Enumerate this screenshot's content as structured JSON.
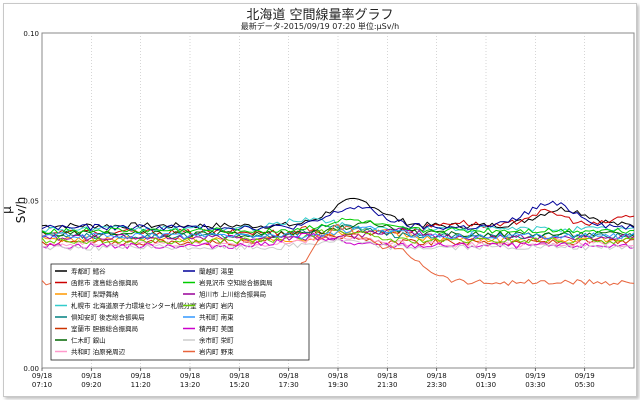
{
  "chart_data": {
    "type": "line",
    "title": "北海道 空間線量率グラフ",
    "subtitle": "最新データ-2015/09/19 07:20 単位:μSv/h",
    "ylabel": "μ Sv/h",
    "ylim": [
      0,
      0.1
    ],
    "yticks": [
      "0.00",
      "0.05",
      "0.10"
    ],
    "x_start": "09/18 07:10",
    "x_end": "09/19 07:20",
    "xticks": [
      [
        "09/18",
        "07:10"
      ],
      [
        "09/18",
        "09:20"
      ],
      [
        "09/18",
        "11:20"
      ],
      [
        "09/18",
        "13:20"
      ],
      [
        "09/18",
        "15:20"
      ],
      [
        "09/18",
        "17:30"
      ],
      [
        "09/18",
        "19:30"
      ],
      [
        "09/18",
        "21:30"
      ],
      [
        "09/18",
        "23:30"
      ],
      [
        "09/19",
        "01:30"
      ],
      [
        "09/19",
        "03:30"
      ],
      [
        "09/19",
        "05:30"
      ]
    ],
    "grid": true,
    "legend_position": "bottom-left inside",
    "series": [
      {
        "name": "寿都町 鱈谷",
        "color": "#000000",
        "level": 0.0425,
        "bumps": [
          [
            0.53,
            0.0075
          ],
          [
            0.88,
            0.005
          ]
        ]
      },
      {
        "name": "函館市 渡島総合振興局",
        "color": "#cc0000",
        "level": 0.0405,
        "bumps": [
          [
            0.7,
            0.003
          ],
          [
            0.85,
            0.006
          ],
          [
            1.0,
            0.005
          ]
        ]
      },
      {
        "name": "共和町 梨野舞納",
        "color": "#ff9900",
        "level": 0.0385,
        "bumps": [
          [
            0.55,
            0.003
          ]
        ]
      },
      {
        "name": "札幌市 北海道原子力環境センター札幌分室",
        "color": "#33cccc",
        "level": 0.0415,
        "bumps": [
          [
            0.45,
            0.003
          ]
        ]
      },
      {
        "name": "倶知安町 後志総合振興局",
        "color": "#008080",
        "level": 0.0395,
        "bumps": [
          [
            0.5,
            0.003
          ]
        ]
      },
      {
        "name": "室蘭市 胆振総合振興局",
        "color": "#cc3300",
        "level": 0.0375,
        "bumps": [
          [
            0.45,
            0.004
          ]
        ]
      },
      {
        "name": "仁木町 銀山",
        "color": "#006600",
        "level": 0.04,
        "bumps": [
          [
            0.55,
            0.003
          ]
        ]
      },
      {
        "name": "共和町 泊原発周辺",
        "color": "#ff99cc",
        "level": 0.037,
        "bumps": [
          [
            0.5,
            0.002
          ]
        ]
      },
      {
        "name": "蘭越町 湯里",
        "color": "#000099",
        "level": 0.042,
        "bumps": [
          [
            0.53,
            0.006
          ],
          [
            0.86,
            0.007
          ]
        ]
      },
      {
        "name": "岩見沢市 空知総合振興局",
        "color": "#00cc00",
        "level": 0.041,
        "bumps": [
          [
            0.52,
            0.003
          ]
        ]
      },
      {
        "name": "旭川市 上川総合振興局",
        "color": "#990099",
        "level": 0.039,
        "bumps": [
          [
            0.6,
            0.002
          ]
        ]
      },
      {
        "name": "岩内町 岩内",
        "color": "#66cc00",
        "level": 0.038,
        "bumps": [
          [
            0.5,
            0.003
          ]
        ]
      },
      {
        "name": "共和町 南東",
        "color": "#3399ff",
        "level": 0.0395,
        "bumps": [
          [
            0.55,
            0.002
          ]
        ]
      },
      {
        "name": "積丹町 美国",
        "color": "#cc00cc",
        "level": 0.0365,
        "bumps": [
          [
            0.45,
            0.003
          ]
        ]
      },
      {
        "name": "余市町 栄町",
        "color": "#cccccc",
        "level": 0.036,
        "bumps": [
          [
            0.5,
            0.002
          ]
        ]
      },
      {
        "name": "岩内町 野束",
        "color": "#e8643c",
        "level": 0.0255,
        "bumps": [
          [
            0.5,
            0.016
          ],
          [
            0.6,
            0.009
          ]
        ]
      }
    ]
  }
}
